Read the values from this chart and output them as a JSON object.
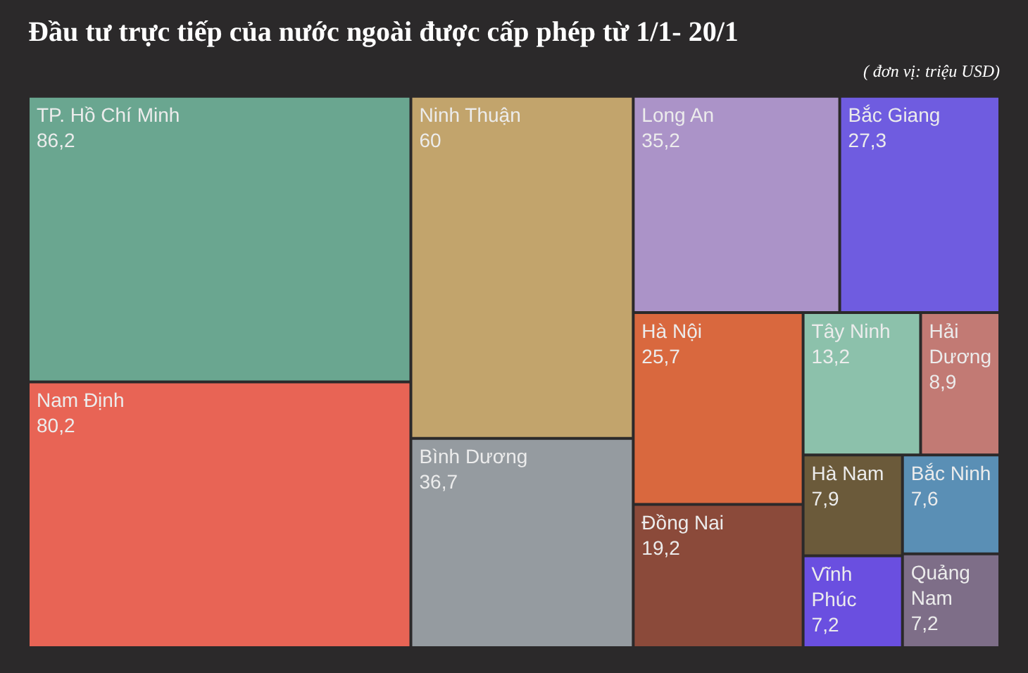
{
  "chart_data": {
    "type": "other",
    "title": "Đầu tư trực tiếp của nước ngoài được cấp phép từ 1/1- 20/1",
    "subtitle": "( đơn vị: triệu USD)",
    "categories": [
      "TP. Hồ Chí Minh",
      "Nam Định",
      "Ninh Thuận",
      "Bình Dương",
      "Long An",
      "Bắc Giang",
      "Hà Nội",
      "Đồng Nai",
      "Tây Ninh",
      "Hải Dương",
      "Hà Nam",
      "Vĩnh Phúc",
      "Bắc Ninh",
      "Quảng Nam"
    ],
    "values": [
      86.2,
      80.2,
      60,
      36.7,
      35.2,
      27.3,
      25.7,
      19.2,
      13.2,
      8.9,
      7.9,
      7.2,
      7.6,
      7.2
    ],
    "value_labels": [
      "86,2",
      "80,2",
      "60",
      "36,7",
      "35,2",
      "27,3",
      "25,7",
      "19,2",
      "13,2",
      "8,9",
      "7,9",
      "7,2",
      "7,6",
      "7,2"
    ],
    "colors": [
      "#6aa690",
      "#e86455",
      "#c2a46c",
      "#959ba0",
      "#ab93c8",
      "#6f5ce0",
      "#d9683e",
      "#8b4a3a",
      "#8cc1ab",
      "#c27a74",
      "#6b5a3a",
      "#6a4fe0",
      "#5a8fb5",
      "#7e6e88"
    ]
  }
}
